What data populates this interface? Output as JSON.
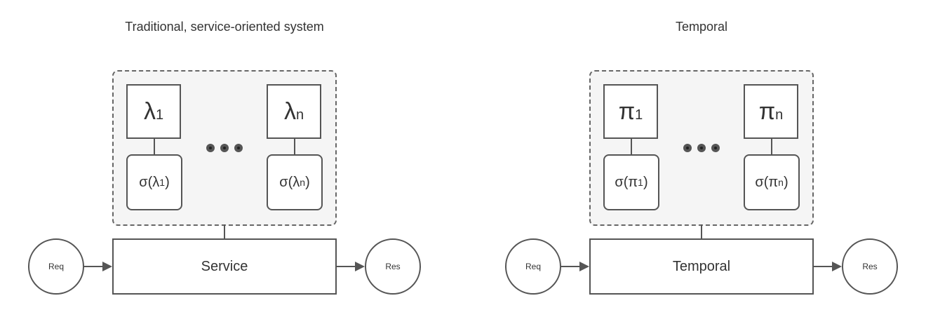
{
  "diagrams": [
    {
      "title": "Traditional, service-oriented system",
      "first_symbol": "λ",
      "first_sub": "1",
      "last_symbol": "λ",
      "last_sub": "n",
      "first_state": "σ(λ",
      "first_state_sub": "1",
      "first_state_close": ")",
      "last_state": "σ(λ",
      "last_state_sub": "n",
      "last_state_close": ")",
      "center_label": "Service",
      "request_label": "Req",
      "response_label": "Res"
    },
    {
      "title": "Temporal",
      "first_symbol": "π",
      "first_sub": "1",
      "last_symbol": "π",
      "last_sub": "n",
      "first_state": "σ(π",
      "first_state_sub": "1",
      "first_state_close": ")",
      "last_state": "σ(π",
      "last_state_sub": "n",
      "last_state_close": ")",
      "center_label": "Temporal",
      "request_label": "Req",
      "response_label": "Res"
    }
  ]
}
